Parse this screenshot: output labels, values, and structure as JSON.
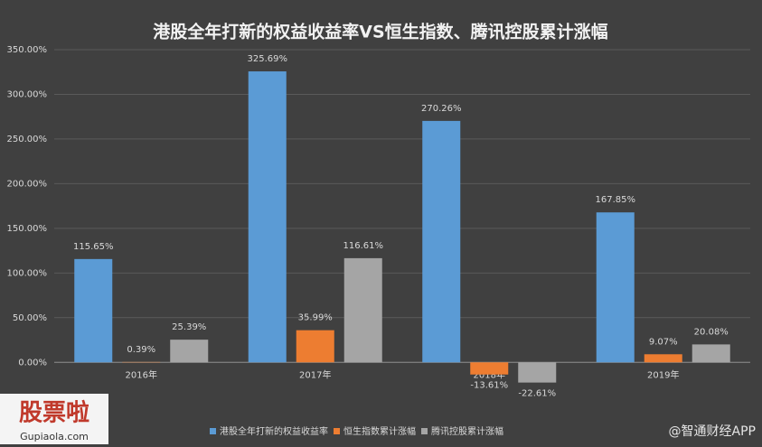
{
  "chart_data": {
    "type": "bar",
    "title": "港股全年打新的权益收益率VS恒生指数、腾讯控股累计涨幅",
    "categories": [
      "2016年",
      "2017年",
      "2018年",
      "2019年"
    ],
    "series": [
      {
        "name": "港股全年打新的权益收益率",
        "color": "#5b9bd5",
        "values": [
          115.65,
          325.69,
          270.26,
          167.85
        ],
        "value_labels": [
          "115.65%",
          "325.69%",
          "270.26%",
          "167.85%"
        ]
      },
      {
        "name": "恒生指数累计涨幅",
        "color": "#ed7d31",
        "values": [
          0.39,
          35.99,
          -13.61,
          9.07
        ],
        "value_labels": [
          "0.39%",
          "35.99%",
          "-13.61%",
          "9.07%"
        ]
      },
      {
        "name": "腾讯控股累计涨幅",
        "color": "#a5a5a5",
        "values": [
          25.39,
          116.61,
          -22.61,
          20.08
        ],
        "value_labels": [
          "25.39%",
          "116.61%",
          "-22.61%",
          "20.08%"
        ]
      }
    ],
    "ylim": [
      -25,
      350
    ],
    "yticks": [
      {
        "value": 0,
        "label": "0.00%"
      },
      {
        "value": 50,
        "label": "50.00%"
      },
      {
        "value": 100,
        "label": "100.00%"
      },
      {
        "value": 150,
        "label": "150.00%"
      },
      {
        "value": 200,
        "label": "200.00%"
      },
      {
        "value": 250,
        "label": "250.00%"
      },
      {
        "value": 300,
        "label": "300.00%"
      },
      {
        "value": 350,
        "label": "350.00%"
      }
    ],
    "grid": true,
    "legend": "bottom"
  },
  "watermark": {
    "logo": "股票啦",
    "site": "Gupiaola.com",
    "source": "@智通财经APP"
  }
}
